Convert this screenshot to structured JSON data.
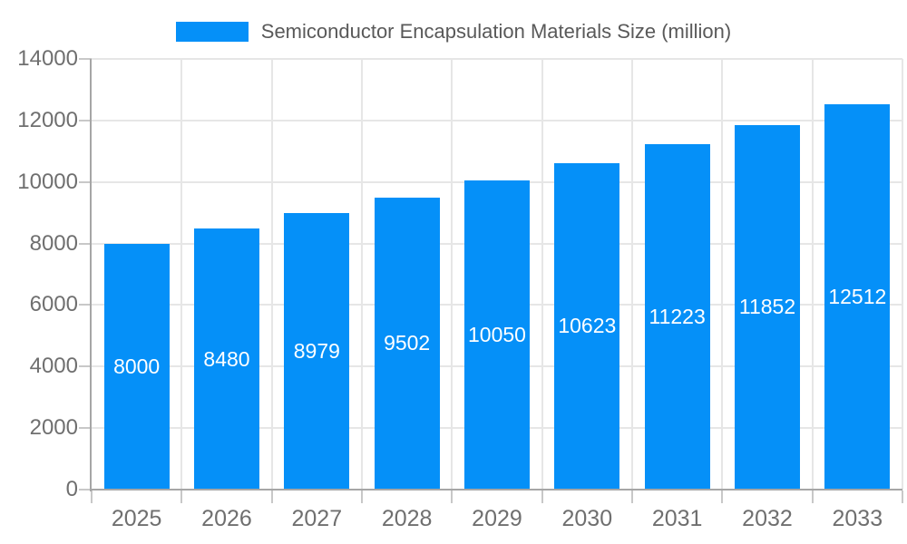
{
  "legend": {
    "label": "Semiconductor Encapsulation Materials Size (million)"
  },
  "colors": {
    "bar": "#0590f8",
    "grid": "#e6e6e6",
    "axis": "#a6a6a6",
    "tick": "#c8c8c8",
    "axis_text": "#6f6f6f",
    "title_text": "#595959",
    "bar_label": "#ffffff",
    "background": "#ffffff"
  },
  "chart_data": {
    "type": "bar",
    "title": "Semiconductor Encapsulation Materials Size (million)",
    "categories": [
      "2025",
      "2026",
      "2027",
      "2028",
      "2029",
      "2030",
      "2031",
      "2032",
      "2033"
    ],
    "values": [
      8000,
      8480,
      8979,
      9502,
      10050,
      10623,
      11223,
      11852,
      12512
    ],
    "xlabel": "",
    "ylabel": "",
    "ylim": [
      0,
      14000
    ],
    "yticks": [
      0,
      2000,
      4000,
      6000,
      8000,
      10000,
      12000,
      14000
    ],
    "grid": true,
    "legend_position": "top",
    "value_labels": "inside-center"
  }
}
